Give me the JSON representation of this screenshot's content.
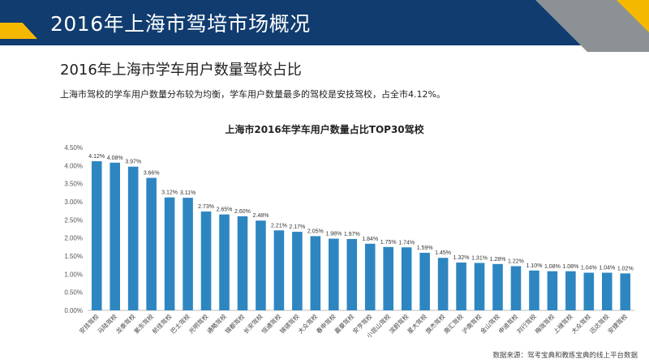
{
  "header": {
    "title": "2016年上海市驾培市场概况"
  },
  "section": {
    "subtitle": "2016年上海市学车用户数量驾校占比",
    "description": "上海市驾校的学车用户数量分布较为均衡，学车用户数量最多的驾校是安技驾校，占全市4.12%。"
  },
  "source": "数据来源：驾考宝典和教练宝典的线上平台数据",
  "colors": {
    "header": "#103c6f",
    "accent": "#f5b800",
    "corner": "#8c9196",
    "bar": "#2e86c1"
  },
  "chart_data": {
    "type": "bar",
    "title": "上海市2016年学车用户数量占比TOP30驾校",
    "categories": [
      "安技驾校",
      "马陆驾校",
      "龙泰驾校",
      "紫东驾校",
      "航佳驾校",
      "巴士驾校",
      "光明驾校",
      "通略驾校",
      "锦都驾校",
      "长安驾校",
      "恒通驾校",
      "锦骐驾校",
      "大众驾校",
      "春申驾校",
      "嘉豪驾校",
      "安亨驾校",
      "小昆山驾校",
      "滨蔚驾校",
      "星大驾校",
      "旗杰驾校",
      "南汇驾校",
      "沪南驾校",
      "金山驾校",
      "申迪驾校",
      "刘行驾校",
      "梅陇驾校",
      "上缝驾校",
      "大众驾校",
      "迅达驾校",
      "安捷驾校"
    ],
    "values": [
      4.12,
      4.08,
      3.97,
      3.66,
      3.12,
      3.11,
      2.73,
      2.65,
      2.6,
      2.48,
      2.21,
      2.17,
      2.05,
      1.98,
      1.97,
      1.84,
      1.75,
      1.74,
      1.59,
      1.45,
      1.32,
      1.31,
      1.28,
      1.22,
      1.1,
      1.08,
      1.08,
      1.04,
      1.04,
      1.02
    ],
    "value_labels": [
      "4.12%",
      "4.08%",
      "3.97%",
      "3.66%",
      "3.12%",
      "3.11%",
      "2.73%",
      "2.65%",
      "2.60%",
      "2.48%",
      "2.21%",
      "2.17%",
      "2.05%",
      "1.98%",
      "1.97%",
      "1.84%",
      "1.75%",
      "1.74%",
      "1.59%",
      "1.45%",
      "1.32%",
      "1.31%",
      "1.28%",
      "1.22%",
      "1.10%",
      "1.08%",
      "1.08%",
      "1.04%",
      "1.04%",
      "1.02%"
    ],
    "ylim": [
      0,
      4.5
    ],
    "yticks": [
      "0.00%",
      "0.50%",
      "1.00%",
      "1.50%",
      "2.00%",
      "2.50%",
      "3.00%",
      "3.50%",
      "4.00%",
      "4.50%"
    ],
    "grid": false,
    "legend": "none"
  }
}
